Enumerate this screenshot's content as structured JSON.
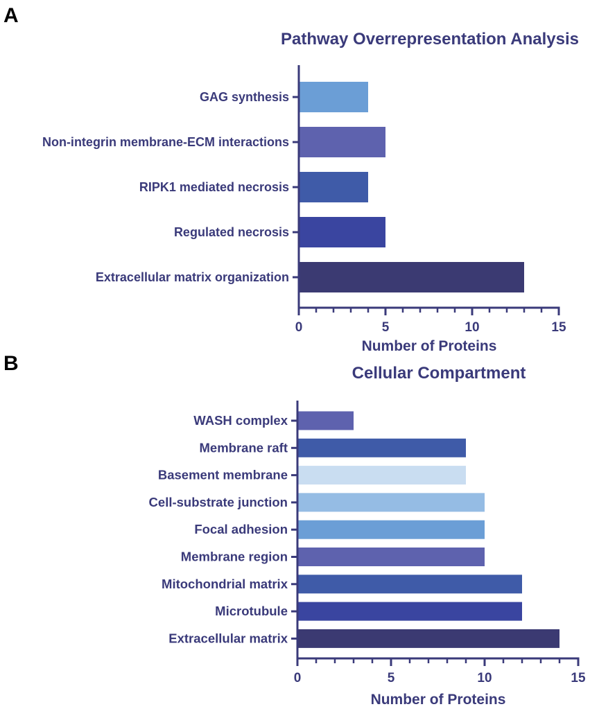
{
  "figure": {
    "panels": [
      {
        "panel_label": "A",
        "chart_data": {
          "type": "bar",
          "orientation": "horizontal",
          "title": "Pathway Overrepresentation Analysis",
          "categories": [
            "GAG synthesis",
            "Non-integrin membrane-ECM interactions",
            "RIPK1 mediated necrosis",
            "Regulated necrosis",
            "Extracellular matrix organization"
          ],
          "values": [
            4,
            5,
            4,
            5,
            13
          ],
          "colors": [
            "#6B9ED6",
            "#5E62AE",
            "#3F5BA8",
            "#3A45A0",
            "#3B3A72"
          ],
          "xlabel": "Number of Proteins",
          "ylabel": "",
          "xlim": [
            0,
            15
          ],
          "xticks": [
            0,
            5,
            10,
            15
          ],
          "xticks_labels": [
            "0",
            "5",
            "10",
            "15"
          ],
          "grid": false
        }
      },
      {
        "panel_label": "B",
        "chart_data": {
          "type": "bar",
          "orientation": "horizontal",
          "title": "Cellular Compartment",
          "categories": [
            "WASH complex",
            "Membrane raft",
            "Basement membrane",
            "Cell-substrate junction",
            "Focal adhesion",
            "Membrane region",
            "Mitochondrial matrix",
            "Microtubule",
            "Extracellular matrix"
          ],
          "values": [
            3,
            9,
            9,
            10,
            10,
            10,
            12,
            12,
            14
          ],
          "colors": [
            "#5E62AE",
            "#3F5BA8",
            "#C9DDF1",
            "#95BCE4",
            "#6B9ED6",
            "#5E62AE",
            "#3F5BA8",
            "#3A45A0",
            "#3B3A72"
          ],
          "xlabel": "Number of Proteins",
          "ylabel": "",
          "xlim": [
            0,
            15
          ],
          "xticks": [
            0,
            5,
            10,
            15
          ],
          "xticks_labels": [
            "0",
            "5",
            "10",
            "15"
          ],
          "grid": false
        }
      }
    ]
  }
}
